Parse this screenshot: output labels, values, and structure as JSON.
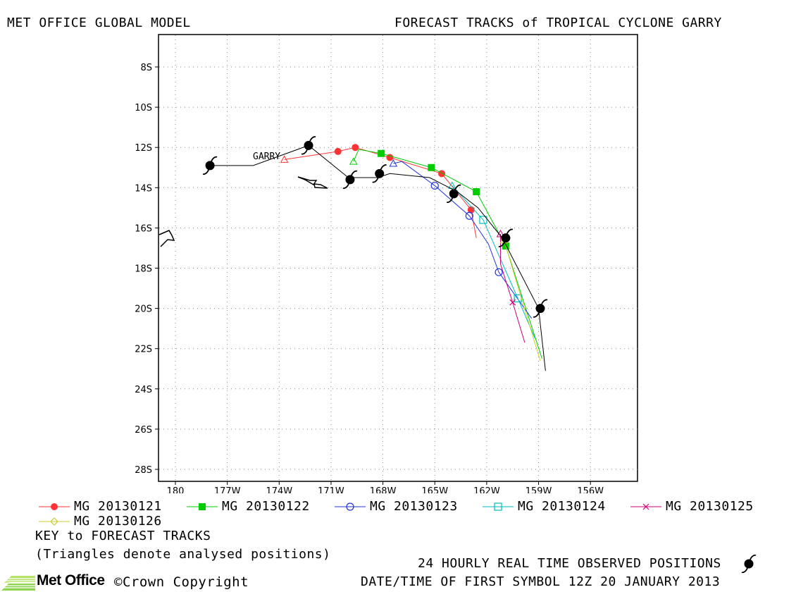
{
  "header": {
    "left_title": "MET OFFICE GLOBAL MODEL",
    "right_title": "FORECAST TRACKS of TROPICAL CYCLONE GARRY"
  },
  "map": {
    "storm_label": "GARRY",
    "lat_ticks": [
      "8S",
      "10S",
      "12S",
      "14S",
      "16S",
      "18S",
      "20S",
      "22S",
      "24S",
      "26S",
      "28S"
    ],
    "lon_ticks": [
      "180",
      "177W",
      "174W",
      "171W",
      "168W",
      "165W",
      "162W",
      "159W",
      "156W"
    ],
    "observed_track": [
      [
        -178.0,
        -12.9
      ],
      [
        -175.5,
        -12.9
      ],
      [
        -172.3,
        -11.9
      ],
      [
        -170.0,
        -13.5
      ],
      [
        -168.3,
        -13.5
      ],
      [
        -167.6,
        -13.3
      ],
      [
        -165.3,
        -13.5
      ],
      [
        -163.7,
        -14.2
      ],
      [
        -162.5,
        -15.0
      ],
      [
        -161.1,
        -16.5
      ],
      [
        -159.0,
        -20.0
      ],
      [
        -158.6,
        -23.1
      ]
    ],
    "observed_symbols": [
      [
        -178.0,
        -12.9
      ],
      [
        -172.3,
        -11.9
      ],
      [
        -169.9,
        -13.6
      ],
      [
        -168.2,
        -13.3
      ],
      [
        -163.9,
        -14.3
      ],
      [
        -160.9,
        -16.5
      ],
      [
        -158.9,
        -20.0
      ]
    ],
    "colors": {
      "mg20130121": "#ff3333",
      "mg20130122": "#00cc00",
      "mg20130123": "#2233dd",
      "mg20130124": "#00bbbb",
      "mg20130125": "#cc0077",
      "mg20130126": "#cccc33",
      "observed": "#000000"
    }
  },
  "legend": {
    "items": [
      {
        "label": "MG 20130121",
        "marker": "filled-circle"
      },
      {
        "label": "MG 20130122",
        "marker": "filled-square"
      },
      {
        "label": "MG 20130123",
        "marker": "open-circle"
      },
      {
        "label": "MG 20130124",
        "marker": "open-square"
      },
      {
        "label": "MG 20130125",
        "marker": "cross"
      },
      {
        "label": "MG 20130126",
        "marker": "diamond"
      }
    ],
    "key_title": "KEY to FORECAST TRACKS",
    "key_note": "(Triangles denote analysed positions)"
  },
  "footer": {
    "logo_text": "Met Office",
    "copyright": "©Crown Copyright",
    "observed_note": "24 HOURLY REAL TIME OBSERVED POSITIONS",
    "first_symbol": "DATE/TIME OF FIRST SYMBOL 12Z 20 JANUARY 2013"
  },
  "forecast_tracks": [
    {
      "key": "mg20130121",
      "points": [
        [
          -173.7,
          -12.6
        ],
        [
          -170.6,
          -12.2
        ],
        [
          -169.6,
          -12.0
        ],
        [
          -167.6,
          -12.5
        ],
        [
          -164.6,
          -13.3
        ],
        [
          -162.9,
          -15.1
        ],
        [
          -162.6,
          -16.5
        ]
      ],
      "markers": [
        [
          -170.6,
          -12.2
        ],
        [
          -169.6,
          -12.0
        ],
        [
          -167.6,
          -12.5
        ],
        [
          -164.6,
          -13.3
        ],
        [
          -162.9,
          -15.1
        ]
      ],
      "analysed": [
        -173.7,
        -12.6
      ]
    },
    {
      "key": "mg20130122",
      "points": [
        [
          -169.7,
          -12.7
        ],
        [
          -169.4,
          -12.1
        ],
        [
          -168.1,
          -12.3
        ],
        [
          -165.2,
          -13.0
        ],
        [
          -162.6,
          -14.2
        ],
        [
          -160.9,
          -16.9
        ],
        [
          -158.8,
          -22.5
        ]
      ],
      "markers": [
        [
          -168.1,
          -12.3
        ],
        [
          -165.2,
          -13.0
        ],
        [
          -162.6,
          -14.2
        ],
        [
          -160.9,
          -16.9
        ]
      ],
      "analysed": [
        -169.7,
        -12.7
      ]
    },
    {
      "key": "mg20130123",
      "points": [
        [
          -167.4,
          -12.8
        ],
        [
          -166.9,
          -12.7
        ],
        [
          -165.0,
          -13.9
        ],
        [
          -163.0,
          -15.4
        ],
        [
          -161.9,
          -16.8
        ],
        [
          -161.3,
          -18.2
        ],
        [
          -159.4,
          -20.5
        ]
      ],
      "markers": [
        [
          -165.0,
          -13.9
        ],
        [
          -163.0,
          -15.4
        ],
        [
          -161.3,
          -18.2
        ]
      ],
      "analysed": [
        -167.4,
        -12.8
      ]
    },
    {
      "key": "mg20130124",
      "points": [
        [
          -164.0,
          -13.9
        ],
        [
          -162.2,
          -15.6
        ],
        [
          -160.2,
          -19.5
        ],
        [
          -159.2,
          -21.5
        ]
      ],
      "markers": [
        [
          -162.2,
          -15.6
        ],
        [
          -160.2,
          -19.5
        ]
      ],
      "analysed": [
        -164.0,
        -13.9
      ]
    },
    {
      "key": "mg20130125",
      "points": [
        [
          -161.2,
          -16.3
        ],
        [
          -161.2,
          -17.8
        ],
        [
          -160.5,
          -19.7
        ],
        [
          -159.8,
          -21.7
        ]
      ],
      "markers": [
        [
          -160.5,
          -19.7
        ]
      ],
      "analysed": [
        -161.2,
        -16.3
      ]
    },
    {
      "key": "mg20130126",
      "points": [
        [
          -161.0,
          -16.6
        ],
        [
          -160.1,
          -19.2
        ],
        [
          -158.9,
          -22.6
        ]
      ],
      "markers": [],
      "analysed": [
        -161.0,
        -16.6
      ]
    }
  ]
}
